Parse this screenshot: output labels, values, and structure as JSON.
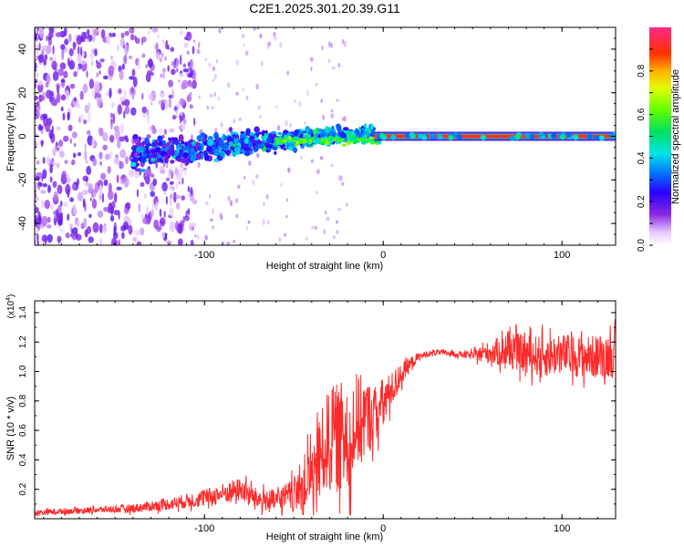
{
  "title": "C2E1.2025.301.20.39.G11",
  "chart_data": [
    {
      "type": "heatmap",
      "name": "spectrogram",
      "xlabel": "Height of straight line (km)",
      "ylabel": "Frequency (Hz)",
      "xlim": [
        -195,
        130
      ],
      "ylim": [
        -50,
        50
      ],
      "xticks": [
        -100,
        0,
        100
      ],
      "yticks": [
        -40,
        -20,
        0,
        20,
        40
      ],
      "colorbar": {
        "label": "Normalized spectral amplitude",
        "range": [
          0,
          1
        ],
        "ticks": [
          "0.0",
          "0.2",
          "0.4",
          "0.6",
          "0.8"
        ]
      },
      "description_points": {
        "tone_frequency_hz": 0,
        "noise_until_km": -140,
        "signal_band_start_km": -140,
        "signal_band_end_km": -5,
        "stable_tone_start_km": -5
      }
    },
    {
      "type": "line",
      "name": "snr",
      "xlabel": "Height of straight line (km)",
      "ylabel": "SNR (10 * v/v)",
      "scale_label": "(x10",
      "scale_exp": "4",
      "scale_close": ")",
      "xlim": [
        -195,
        130
      ],
      "ylim": [
        0,
        1.48
      ],
      "xticks": [
        -100,
        0,
        100
      ],
      "yticks": [
        "0.2",
        "0.4",
        "0.6",
        "0.8",
        "1.0",
        "1.2",
        "1.4"
      ],
      "color": "#ff2a2a",
      "x": [
        -195,
        -180,
        -160,
        -140,
        -120,
        -100,
        -90,
        -80,
        -70,
        -60,
        -50,
        -40,
        -30,
        -20,
        -15,
        -10,
        -5,
        0,
        5,
        10,
        15,
        20,
        25,
        30,
        40,
        50,
        60,
        70,
        80,
        90,
        100,
        110,
        120,
        130
      ],
      "values": [
        0.04,
        0.05,
        0.06,
        0.07,
        0.1,
        0.14,
        0.17,
        0.2,
        0.13,
        0.12,
        0.16,
        0.3,
        0.55,
        0.55,
        0.65,
        0.68,
        0.7,
        0.78,
        0.88,
        0.98,
        1.05,
        1.1,
        1.12,
        1.13,
        1.12,
        1.11,
        1.13,
        1.14,
        1.12,
        1.1,
        1.12,
        1.1,
        1.1,
        1.12
      ],
      "noise_amplitude": [
        0.02,
        0.02,
        0.02,
        0.03,
        0.04,
        0.06,
        0.07,
        0.08,
        0.07,
        0.08,
        0.12,
        0.25,
        0.35,
        0.4,
        0.35,
        0.28,
        0.2,
        0.18,
        0.12,
        0.08,
        0.05,
        0.03,
        0.02,
        0.02,
        0.02,
        0.03,
        0.08,
        0.12,
        0.13,
        0.14,
        0.14,
        0.14,
        0.15,
        0.16
      ]
    }
  ]
}
